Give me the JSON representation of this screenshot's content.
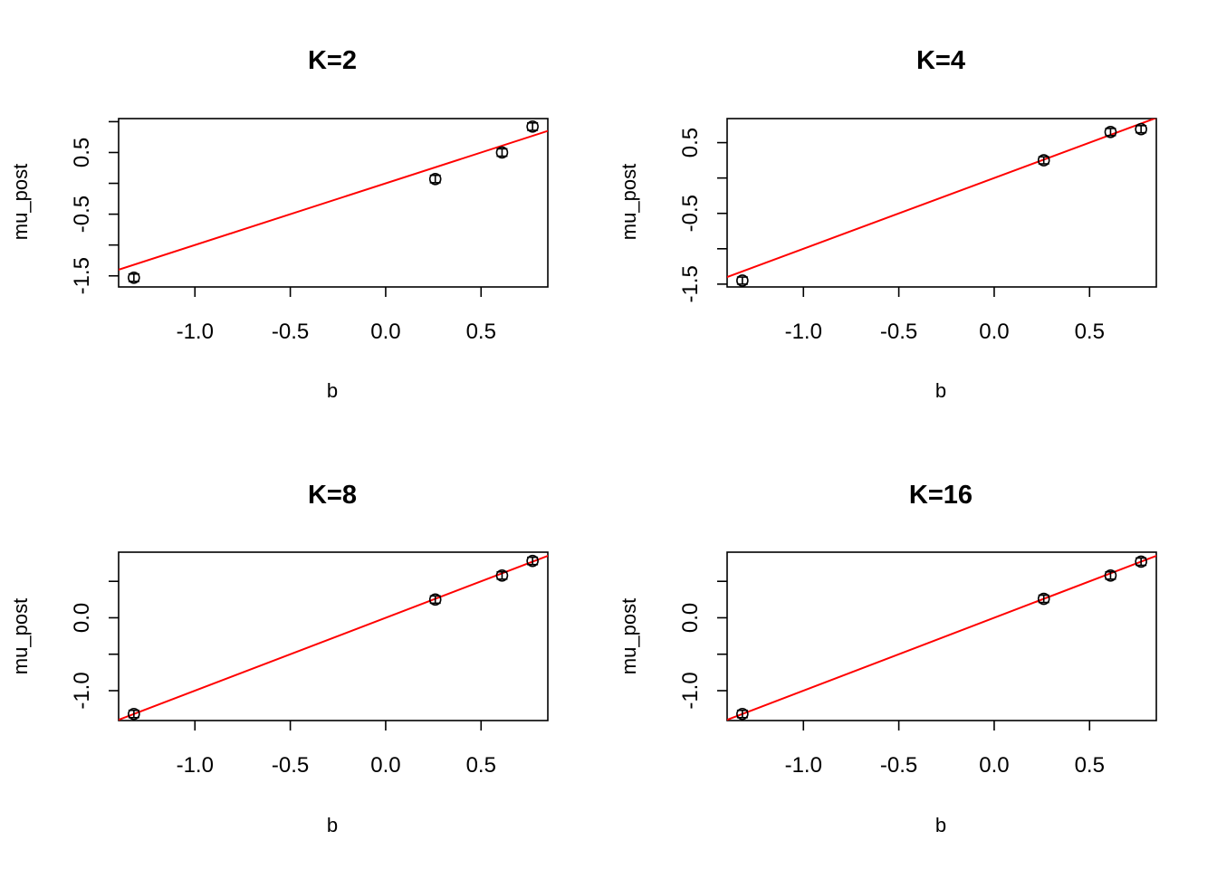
{
  "chart_data": [
    {
      "type": "scatter",
      "title": "K=2",
      "xlabel": "b",
      "ylabel": "mu_post",
      "xlim": [
        -1.4,
        0.85
      ],
      "ylim": [
        -1.68,
        1.05
      ],
      "x_ticks": [
        -1.0,
        -0.5,
        0.0,
        0.5
      ],
      "x_tick_labels": [
        "-1.0",
        "-0.5",
        "0.0",
        "0.5"
      ],
      "y_ticks": [
        -1.5,
        -1.0,
        -0.5,
        0.0,
        0.5,
        1.0
      ],
      "y_tick_labels": [
        "-1.5",
        "",
        "-0.5",
        "",
        "0.5",
        ""
      ],
      "x": [
        -1.32,
        0.26,
        0.61,
        0.77
      ],
      "y": [
        -1.53,
        0.07,
        0.5,
        0.92
      ],
      "err": [
        0.06,
        0.06,
        0.06,
        0.06
      ],
      "reference_line": {
        "intercept": 0,
        "slope": 1,
        "color": "#ff0000"
      },
      "point_color": "#000000",
      "grid": false
    },
    {
      "type": "scatter",
      "title": "K=4",
      "xlabel": "b",
      "ylabel": "mu_post",
      "xlim": [
        -1.4,
        0.85
      ],
      "ylim": [
        -1.54,
        0.84
      ],
      "x_ticks": [
        -1.0,
        -0.5,
        0.0,
        0.5
      ],
      "x_tick_labels": [
        "-1.0",
        "-0.5",
        "0.0",
        "0.5"
      ],
      "y_ticks": [
        -1.5,
        -1.0,
        -0.5,
        0.0,
        0.5
      ],
      "y_tick_labels": [
        "-1.5",
        "",
        "-0.5",
        "",
        "0.5"
      ],
      "x": [
        -1.32,
        0.26,
        0.61,
        0.77
      ],
      "y": [
        -1.45,
        0.25,
        0.65,
        0.69
      ],
      "err": [
        0.05,
        0.05,
        0.05,
        0.05
      ],
      "reference_line": {
        "intercept": 0,
        "slope": 1,
        "color": "#ff0000"
      },
      "point_color": "#000000",
      "grid": false
    },
    {
      "type": "scatter",
      "title": "K=8",
      "xlabel": "b",
      "ylabel": "mu_post",
      "xlim": [
        -1.4,
        0.85
      ],
      "ylim": [
        -1.41,
        0.9
      ],
      "x_ticks": [
        -1.0,
        -0.5,
        0.0,
        0.5
      ],
      "x_tick_labels": [
        "-1.0",
        "-0.5",
        "0.0",
        "0.5"
      ],
      "y_ticks": [
        -1.0,
        -0.5,
        0.0,
        0.5
      ],
      "y_tick_labels": [
        "-1.0",
        "",
        "0.0",
        ""
      ],
      "x": [
        -1.32,
        0.26,
        0.61,
        0.77
      ],
      "y": [
        -1.32,
        0.25,
        0.58,
        0.78
      ],
      "err": [
        0.05,
        0.05,
        0.05,
        0.05
      ],
      "reference_line": {
        "intercept": 0,
        "slope": 1,
        "color": "#ff0000"
      },
      "point_color": "#000000",
      "grid": false
    },
    {
      "type": "scatter",
      "title": "K=16",
      "xlabel": "b",
      "ylabel": "mu_post",
      "xlim": [
        -1.4,
        0.85
      ],
      "ylim": [
        -1.41,
        0.9
      ],
      "x_ticks": [
        -1.0,
        -0.5,
        0.0,
        0.5
      ],
      "x_tick_labels": [
        "-1.0",
        "-0.5",
        "0.0",
        "0.5"
      ],
      "y_ticks": [
        -1.0,
        -0.5,
        0.0,
        0.5
      ],
      "y_tick_labels": [
        "-1.0",
        "",
        "0.0",
        ""
      ],
      "x": [
        -1.32,
        0.26,
        0.61,
        0.77
      ],
      "y": [
        -1.32,
        0.26,
        0.58,
        0.77
      ],
      "err": [
        0.05,
        0.05,
        0.05,
        0.05
      ],
      "reference_line": {
        "intercept": 0,
        "slope": 1,
        "color": "#ff0000"
      },
      "point_color": "#000000",
      "grid": false
    }
  ]
}
